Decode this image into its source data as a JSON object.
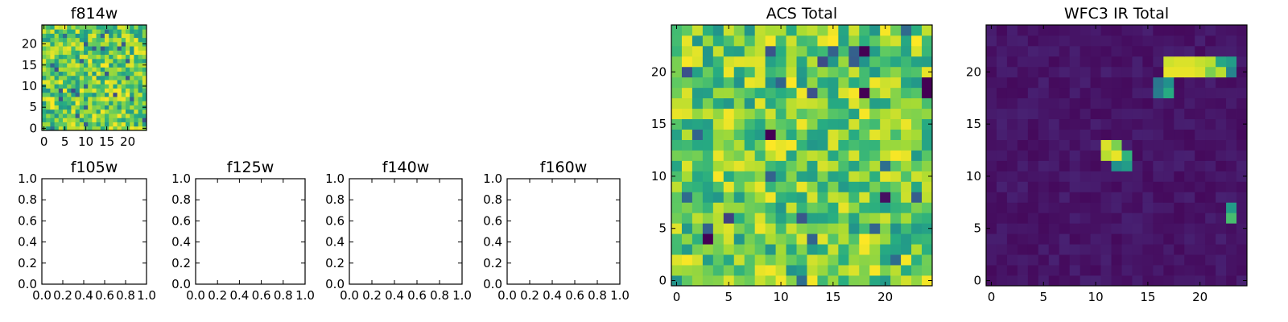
{
  "chart_data": [
    {
      "id": "f814w",
      "type": "heatmap",
      "title": "f814w",
      "colormap": "viridis",
      "rows": 25,
      "cols": 25,
      "xticks": [
        0,
        5,
        10,
        15,
        20
      ],
      "yticks": [
        0,
        5,
        10,
        15,
        20
      ],
      "xlim": [
        -0.5,
        24.5
      ],
      "ylim": [
        -0.5,
        24.5
      ],
      "value_range": [
        0,
        1
      ],
      "pattern": "noise_bright",
      "seed": 814,
      "features": []
    },
    {
      "id": "f105w",
      "type": "empty",
      "title": "f105w",
      "xticks": [
        0.0,
        0.2,
        0.4,
        0.6,
        0.8,
        1.0
      ],
      "yticks": [
        0.0,
        0.2,
        0.4,
        0.6,
        0.8,
        1.0
      ],
      "xtick_labels": [
        "0.0",
        "0.2",
        "0.4",
        "0.6",
        "0.8",
        "1.0"
      ],
      "ytick_labels": [
        "0.0",
        "0.2",
        "0.4",
        "0.6",
        "0.8",
        "1.0"
      ],
      "xlim": [
        0,
        1
      ],
      "ylim": [
        0,
        1
      ]
    },
    {
      "id": "f125w",
      "type": "empty",
      "title": "f125w",
      "xticks": [
        0.0,
        0.2,
        0.4,
        0.6,
        0.8,
        1.0
      ],
      "yticks": [
        0.0,
        0.2,
        0.4,
        0.6,
        0.8,
        1.0
      ],
      "xtick_labels": [
        "0.0",
        "0.2",
        "0.4",
        "0.6",
        "0.8",
        "1.0"
      ],
      "ytick_labels": [
        "0.0",
        "0.2",
        "0.4",
        "0.6",
        "0.8",
        "1.0"
      ],
      "xlim": [
        0,
        1
      ],
      "ylim": [
        0,
        1
      ]
    },
    {
      "id": "f140w",
      "type": "empty",
      "title": "f140w",
      "xticks": [
        0.0,
        0.2,
        0.4,
        0.6,
        0.8,
        1.0
      ],
      "yticks": [
        0.0,
        0.2,
        0.4,
        0.6,
        0.8,
        1.0
      ],
      "xtick_labels": [
        "0.0",
        "0.2",
        "0.4",
        "0.6",
        "0.8",
        "1.0"
      ],
      "ytick_labels": [
        "0.0",
        "0.2",
        "0.4",
        "0.6",
        "0.8",
        "1.0"
      ],
      "xlim": [
        0,
        1
      ],
      "ylim": [
        0,
        1
      ]
    },
    {
      "id": "f160w",
      "type": "empty",
      "title": "f160w",
      "xticks": [
        0.0,
        0.2,
        0.4,
        0.6,
        0.8,
        1.0
      ],
      "yticks": [
        0.0,
        0.2,
        0.4,
        0.6,
        0.8,
        1.0
      ],
      "xtick_labels": [
        "0.0",
        "0.2",
        "0.4",
        "0.6",
        "0.8",
        "1.0"
      ],
      "ytick_labels": [
        "0.0",
        "0.2",
        "0.4",
        "0.6",
        "0.8",
        "1.0"
      ],
      "xlim": [
        0,
        1
      ],
      "ylim": [
        0,
        1
      ]
    },
    {
      "id": "acs_total",
      "type": "heatmap",
      "title": "ACS Total",
      "colormap": "viridis",
      "rows": 25,
      "cols": 25,
      "xticks": [
        0,
        5,
        10,
        15,
        20
      ],
      "yticks": [
        0,
        5,
        10,
        15,
        20
      ],
      "xlim": [
        -0.5,
        24.5
      ],
      "ylim": [
        -0.5,
        24.5
      ],
      "value_range": [
        0,
        1
      ],
      "pattern": "noise_bright",
      "seed": 2017,
      "features": [
        {
          "x": 18,
          "y": 22,
          "value": 0.0
        },
        {
          "x": 24,
          "y": 18,
          "value": 0.0
        },
        {
          "x": 24,
          "y": 19,
          "value": 0.0
        },
        {
          "x": 18,
          "y": 18,
          "value": 0.0
        },
        {
          "x": 9,
          "y": 14,
          "value": 0.0
        },
        {
          "x": 3,
          "y": 4,
          "value": 0.0
        },
        {
          "x": 20,
          "y": 8,
          "value": 0.05
        },
        {
          "x": 5,
          "y": 6,
          "value": 0.2
        }
      ]
    },
    {
      "id": "wfc3_ir_total",
      "type": "heatmap",
      "title": "WFC3 IR Total",
      "colormap": "viridis",
      "rows": 25,
      "cols": 25,
      "xticks": [
        0,
        5,
        10,
        15,
        20
      ],
      "yticks": [
        0,
        5,
        10,
        15,
        20
      ],
      "xlim": [
        -0.5,
        24.5
      ],
      "ylim": [
        -0.5,
        24.5
      ],
      "value_range": [
        0,
        1
      ],
      "pattern": "noise_dark",
      "seed": 3160,
      "features": [
        {
          "x": 17,
          "y": 20,
          "value": 0.97
        },
        {
          "x": 18,
          "y": 20,
          "value": 0.97
        },
        {
          "x": 19,
          "y": 20,
          "value": 0.97
        },
        {
          "x": 20,
          "y": 20,
          "value": 0.95
        },
        {
          "x": 21,
          "y": 20,
          "value": 0.8
        },
        {
          "x": 22,
          "y": 20,
          "value": 0.9
        },
        {
          "x": 23,
          "y": 20,
          "value": 0.45
        },
        {
          "x": 17,
          "y": 21,
          "value": 0.93
        },
        {
          "x": 18,
          "y": 21,
          "value": 0.95
        },
        {
          "x": 19,
          "y": 21,
          "value": 0.95
        },
        {
          "x": 20,
          "y": 21,
          "value": 0.92
        },
        {
          "x": 21,
          "y": 21,
          "value": 0.9
        },
        {
          "x": 22,
          "y": 21,
          "value": 0.6
        },
        {
          "x": 23,
          "y": 21,
          "value": 0.55
        },
        {
          "x": 16,
          "y": 19,
          "value": 0.4
        },
        {
          "x": 17,
          "y": 19,
          "value": 0.5
        },
        {
          "x": 16,
          "y": 18,
          "value": 0.42
        },
        {
          "x": 17,
          "y": 18,
          "value": 0.62
        },
        {
          "x": 11,
          "y": 13,
          "value": 0.95
        },
        {
          "x": 12,
          "y": 13,
          "value": 0.8
        },
        {
          "x": 11,
          "y": 12,
          "value": 0.9
        },
        {
          "x": 12,
          "y": 12,
          "value": 0.97
        },
        {
          "x": 13,
          "y": 12,
          "value": 0.65
        },
        {
          "x": 12,
          "y": 11,
          "value": 0.5
        },
        {
          "x": 13,
          "y": 11,
          "value": 0.55
        },
        {
          "x": 23,
          "y": 7,
          "value": 0.55
        },
        {
          "x": 23,
          "y": 6,
          "value": 0.7
        }
      ]
    }
  ]
}
